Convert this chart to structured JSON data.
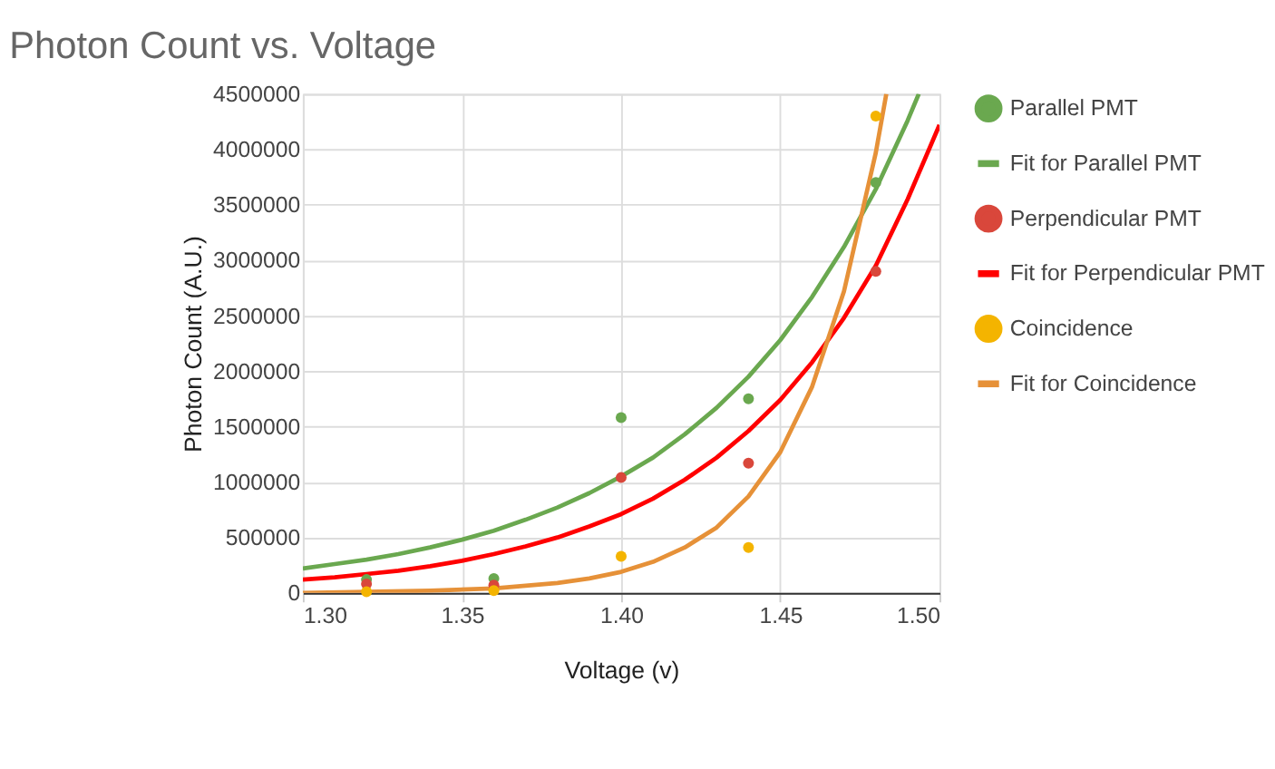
{
  "chart_data": {
    "type": "scatter",
    "title": "Photon Count vs. Voltage",
    "xlabel": "Voltage (v)",
    "ylabel": "Photon Count (A.U.)",
    "xlim": [
      1.3,
      1.5
    ],
    "xticks": [
      {
        "value": 1.3,
        "label": "1.30"
      },
      {
        "value": 1.35,
        "label": "1.35"
      },
      {
        "value": 1.4,
        "label": "1.40"
      },
      {
        "value": 1.45,
        "label": "1.45"
      },
      {
        "value": 1.5,
        "label": "1.50"
      }
    ],
    "ylim": [
      0,
      4500000
    ],
    "yticks": [
      0,
      500000,
      1000000,
      1500000,
      2000000,
      2500000,
      3000000,
      3500000,
      4000000,
      4500000
    ],
    "grid": true,
    "legend": "right",
    "series": [
      {
        "name": "Parallel PMT",
        "type": "scatter",
        "color": "#6aa84f",
        "x": [
          1.32,
          1.36,
          1.4,
          1.44,
          1.48
        ],
        "values": [
          120000,
          130000,
          1580000,
          1750000,
          3700000
        ]
      },
      {
        "name": "Fit for Parallel PMT",
        "type": "line",
        "color": "#6aa84f",
        "x": [
          1.3,
          1.31,
          1.32,
          1.33,
          1.34,
          1.35,
          1.36,
          1.37,
          1.38,
          1.39,
          1.4,
          1.41,
          1.42,
          1.43,
          1.44,
          1.45,
          1.46,
          1.47,
          1.48,
          1.49,
          1.4935
        ],
        "values": [
          220000,
          260000,
          300000,
          350000,
          410000,
          480000,
          560000,
          660000,
          770000,
          900000,
          1050000,
          1220000,
          1430000,
          1670000,
          1950000,
          2280000,
          2670000,
          3120000,
          3640000,
          4260000,
          4500000
        ]
      },
      {
        "name": "Perpendicular PMT",
        "type": "scatter",
        "color": "#d9473b",
        "x": [
          1.32,
          1.36,
          1.4,
          1.44,
          1.48
        ],
        "values": [
          80000,
          70000,
          1040000,
          1170000,
          2900000
        ]
      },
      {
        "name": "Fit for Perpendicular PMT",
        "type": "line",
        "color": "#ff0000",
        "x": [
          1.3,
          1.31,
          1.32,
          1.33,
          1.34,
          1.35,
          1.36,
          1.37,
          1.38,
          1.39,
          1.4,
          1.41,
          1.42,
          1.43,
          1.44,
          1.45,
          1.46,
          1.47,
          1.48,
          1.49,
          1.5
        ],
        "values": [
          120000,
          140000,
          170000,
          200000,
          240000,
          290000,
          350000,
          420000,
          500000,
          600000,
          710000,
          850000,
          1020000,
          1220000,
          1460000,
          1740000,
          2080000,
          2480000,
          2950000,
          3550000,
          4220000
        ]
      },
      {
        "name": "Coincidence",
        "type": "scatter",
        "color": "#f4b400",
        "x": [
          1.32,
          1.36,
          1.4,
          1.44,
          1.48
        ],
        "values": [
          10000,
          20000,
          330000,
          410000,
          4300000
        ]
      },
      {
        "name": "Fit for Coincidence",
        "type": "line",
        "color": "#e69138",
        "x": [
          1.3,
          1.32,
          1.34,
          1.36,
          1.38,
          1.39,
          1.4,
          1.41,
          1.42,
          1.43,
          1.44,
          1.45,
          1.46,
          1.47,
          1.48,
          1.4833
        ],
        "values": [
          0,
          10000,
          20000,
          40000,
          90000,
          130000,
          190000,
          280000,
          410000,
          590000,
          870000,
          1270000,
          1860000,
          2720000,
          3970000,
          4500000
        ]
      }
    ]
  }
}
